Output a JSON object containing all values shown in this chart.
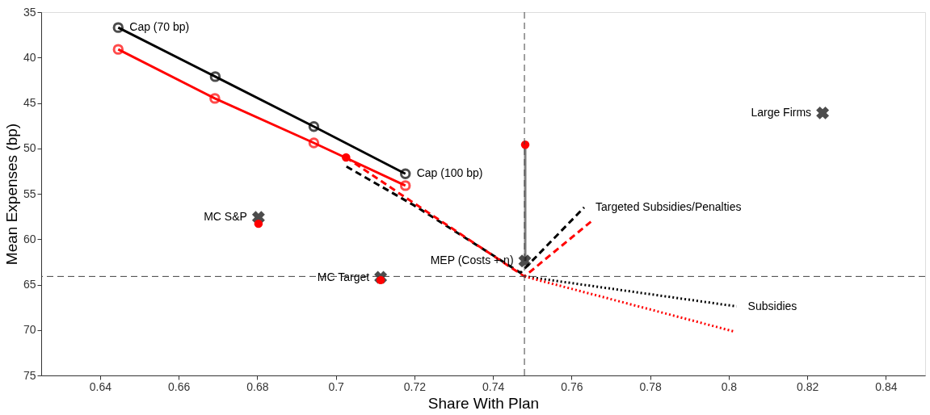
{
  "chart_data": {
    "type": "line",
    "xlabel": "Share With Plan",
    "ylabel": "Mean Expenses (bp)",
    "xlim": [
      0.625,
      0.85
    ],
    "ylim": [
      75,
      35
    ],
    "xticks": [
      0.64,
      0.66,
      0.68,
      0.7,
      0.72,
      0.74,
      0.76,
      0.78,
      0.8,
      0.82,
      0.84
    ],
    "yticks": [
      35,
      40,
      45,
      50,
      55,
      60,
      65,
      70,
      75
    ],
    "grid": false,
    "series": [
      {
        "color": "#000000",
        "marker": "circle",
        "line_style": "solid",
        "x": [
          0.6446,
          0.6693,
          0.6944,
          0.7177
        ],
        "values": [
          36.7,
          42.1,
          47.6,
          52.8
        ]
      },
      {
        "color": "#ff0000",
        "marker": "circle",
        "line_style": "solid",
        "x": [
          0.6446,
          0.6692,
          0.6944,
          0.7177
        ],
        "values": [
          39.1,
          44.5,
          49.4,
          54.1
        ]
      },
      {
        "color": "#000000",
        "marker": "none",
        "line_style": "dashed",
        "x": [
          0.7027,
          0.72,
          0.747,
          0.7632
        ],
        "values": [
          52.0,
          56.3,
          63.7,
          56.5
        ]
      },
      {
        "color": "#ff0000",
        "marker": "none",
        "line_style": "dashed",
        "x": [
          0.7026,
          0.717,
          0.748,
          0.7657
        ],
        "values": [
          51.0,
          55.2,
          64.1,
          57.8
        ]
      },
      {
        "color": "#000000",
        "marker": "none",
        "line_style": "dotted",
        "x": [
          0.748,
          0.802
        ],
        "values": [
          64.1,
          67.4
        ]
      },
      {
        "color": "#ff0000",
        "marker": "none",
        "line_style": "dotted",
        "x": [
          0.748,
          0.8017
        ],
        "values": [
          64.1,
          70.2
        ]
      },
      {
        "color": "#808080",
        "marker": "none",
        "line_style": "solid",
        "x": [
          0.7482,
          0.7482
        ],
        "values": [
          49.6,
          62.4
        ]
      },
      {
        "type": "scatter",
        "color": "#000000",
        "marker": "cross",
        "x": [
          0.7481,
          0.6803,
          0.7114,
          0.8239
        ],
        "values": [
          62.4,
          57.6,
          64.2,
          46.1
        ]
      },
      {
        "type": "scatter",
        "color": "#ff0000",
        "marker": "circle",
        "x": [
          0.7026,
          0.7482,
          0.6803,
          0.7114
        ],
        "values": [
          51.0,
          49.6,
          58.3,
          64.5
        ]
      }
    ],
    "ref_lines": [
      {
        "axis": "x",
        "value": 0.748,
        "color": "#404040",
        "line_style": "dashed"
      },
      {
        "axis": "y",
        "value": 64.1,
        "color": "#404040",
        "line_style": "dashed"
      }
    ],
    "annotations": [
      {
        "text": "Cap (70 bp)",
        "x": 0.6446,
        "y": 36.7
      },
      {
        "text": "Cap (100 bp)",
        "x": 0.7177,
        "y": 52.8
      },
      {
        "text": "Targeted Subsidies/Penalties",
        "x": 0.7632,
        "y": 56.5
      },
      {
        "text": "MEP (Costs + η)",
        "x": 0.7481,
        "y": 62.4
      },
      {
        "text": "MC S&P",
        "x": 0.6803,
        "y": 57.6
      },
      {
        "text": "MC Target",
        "x": 0.7114,
        "y": 64.2
      },
      {
        "text": "Large Firms",
        "x": 0.8239,
        "y": 46.1
      },
      {
        "text": "Subsidies",
        "x": 0.802,
        "y": 67.4
      }
    ]
  }
}
